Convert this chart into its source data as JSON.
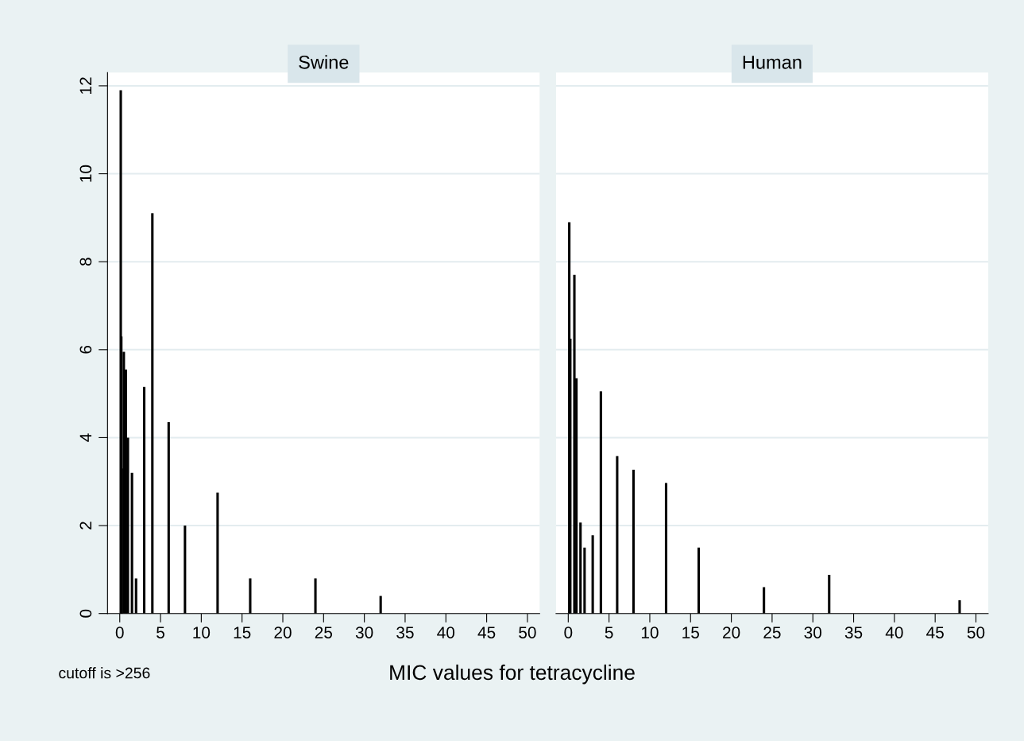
{
  "chart_data": [
    {
      "type": "bar",
      "title": "Swine",
      "xlabel": "MIC values for tetracycline",
      "annotations": [
        "cutoff is >256"
      ],
      "x": [
        0.125,
        0.19,
        0.25,
        0.5,
        0.75,
        1,
        1.5,
        2,
        3,
        4,
        6,
        8,
        12,
        16,
        24,
        32
      ],
      "values": [
        11.9,
        6.3,
        3.3,
        5.95,
        5.55,
        4.0,
        3.2,
        0.8,
        5.15,
        9.1,
        4.35,
        2.0,
        2.75,
        0.8,
        0.8,
        0.4
      ],
      "color": "#000000",
      "xlim": [
        -1.5,
        51.5
      ],
      "xticks": [
        0,
        5,
        10,
        15,
        20,
        25,
        30,
        35,
        40,
        45,
        50
      ],
      "ylim": [
        0,
        12.3
      ],
      "yticks": [
        0,
        2,
        4,
        6,
        8,
        10,
        12
      ],
      "grid": "y"
    },
    {
      "type": "bar",
      "title": "Human",
      "x": [
        0.125,
        0.25,
        0.75,
        1,
        1.5,
        2,
        3,
        4,
        6,
        8,
        12,
        16,
        24,
        32,
        48
      ],
      "values": [
        8.9,
        6.25,
        7.7,
        5.35,
        2.07,
        1.5,
        1.78,
        5.05,
        3.58,
        3.27,
        2.97,
        1.5,
        0.6,
        0.88,
        0.3
      ],
      "color": "#000000",
      "xlim": [
        -1.5,
        51.5
      ],
      "xticks": [
        0,
        5,
        10,
        15,
        20,
        25,
        30,
        35,
        40,
        45,
        50
      ],
      "ylim": [
        0,
        12.3
      ],
      "yticks": [
        0,
        2,
        4,
        6,
        8,
        10,
        12
      ],
      "grid": "y",
      "tick_labels": "x"
    }
  ]
}
